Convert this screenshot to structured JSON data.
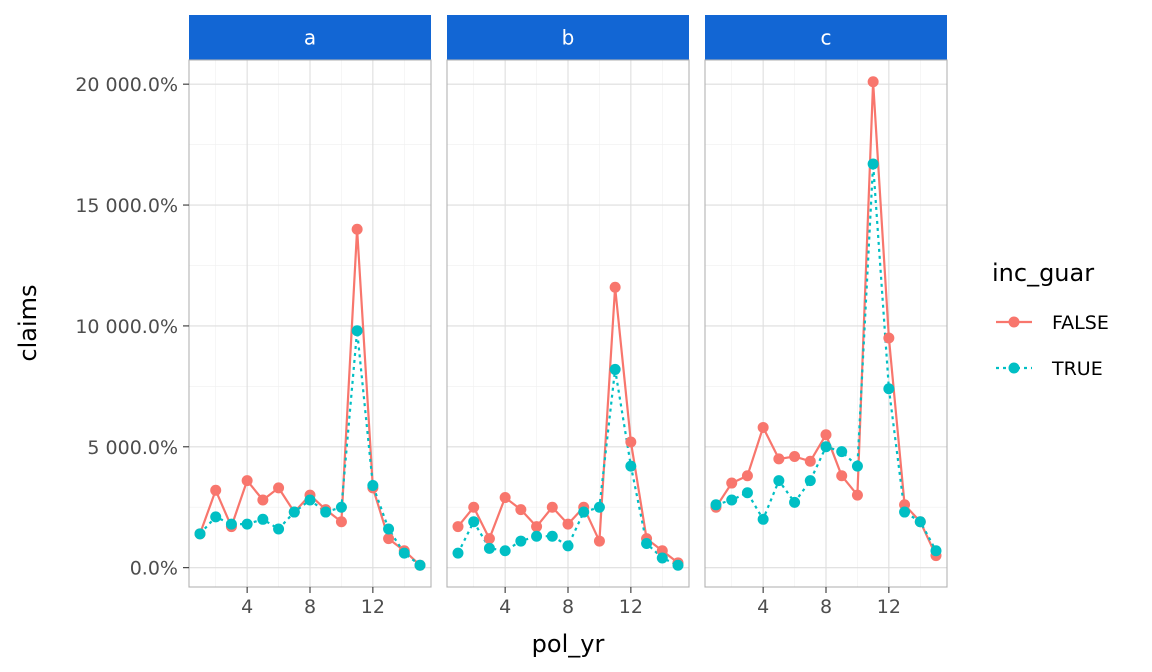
{
  "chart_data": {
    "type": "line",
    "xlabel": "pol_yr",
    "ylabel": "claims",
    "xlim": [
      0.3,
      15.7
    ],
    "ylim": [
      -800,
      21000
    ],
    "x_ticks": [
      4,
      8,
      12
    ],
    "y_ticks": [
      0,
      5000,
      10000,
      15000,
      20000
    ],
    "y_tick_labels": [
      "0.0%",
      "5 000.0%",
      "10 000.0%",
      "15 000.0%",
      "20 000.0%"
    ],
    "x": [
      1,
      2,
      3,
      4,
      5,
      6,
      7,
      8,
      9,
      10,
      11,
      12,
      13,
      14,
      15
    ],
    "legend": {
      "title": "inc_guar",
      "position": "right",
      "entries": [
        "FALSE",
        "TRUE"
      ]
    },
    "colors": {
      "FALSE": "#f8766d",
      "TRUE": "#00bfc4"
    },
    "grid": true,
    "facets": [
      {
        "label": "a",
        "series": [
          {
            "name": "FALSE",
            "values": [
              1400,
              3200,
              1700,
              3600,
              2800,
              3300,
              2300,
              3000,
              2400,
              1900,
              14000,
              3300,
              1200,
              700,
              100
            ]
          },
          {
            "name": "TRUE",
            "values": [
              1400,
              2100,
              1800,
              1800,
              2000,
              1600,
              2300,
              2800,
              2300,
              2500,
              9800,
              3400,
              1600,
              600,
              100
            ]
          }
        ]
      },
      {
        "label": "b",
        "series": [
          {
            "name": "FALSE",
            "values": [
              1700,
              2500,
              1200,
              2900,
              2400,
              1700,
              2500,
              1800,
              2500,
              1100,
              11600,
              5200,
              1200,
              700,
              200
            ]
          },
          {
            "name": "TRUE",
            "values": [
              600,
              1900,
              800,
              700,
              1100,
              1300,
              1300,
              900,
              2300,
              2500,
              8200,
              4200,
              1000,
              400,
              100
            ]
          }
        ]
      },
      {
        "label": "c",
        "series": [
          {
            "name": "FALSE",
            "values": [
              2500,
              3500,
              3800,
              5800,
              4500,
              4600,
              4400,
              5500,
              3800,
              3000,
              20100,
              9500,
              2600,
              1900,
              500
            ]
          },
          {
            "name": "TRUE",
            "values": [
              2600,
              2800,
              3100,
              2000,
              3600,
              2700,
              3600,
              5000,
              4800,
              4200,
              16700,
              7400,
              2300,
              1900,
              700
            ]
          }
        ]
      }
    ]
  }
}
